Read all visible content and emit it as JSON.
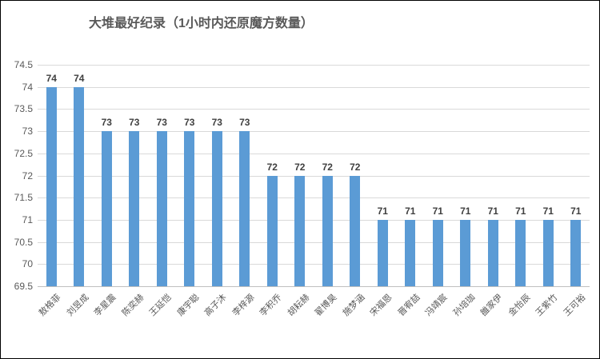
{
  "chart_data": {
    "type": "bar",
    "title": "大堆最好纪录（1小时内还原魔方数量）",
    "categories": [
      "敖格菲",
      "刘昱成",
      "李星震",
      "陈奕赫",
      "王延恺",
      "康宇聪",
      "高子沐",
      "李梓源",
      "李积乔",
      "胡耘赫",
      "翟博昊",
      "施梦涵",
      "宋福恩",
      "晋宥喆",
      "冯靖宸",
      "孙培珈",
      "雒家伊",
      "金怡辰",
      "王紫竹",
      "王可裕"
    ],
    "values": [
      74,
      74,
      73,
      73,
      73,
      73,
      73,
      73,
      72,
      72,
      72,
      72,
      71,
      71,
      71,
      71,
      71,
      71,
      71,
      71
    ],
    "xlabel": "",
    "ylabel": "",
    "ylim": [
      69.5,
      74.5
    ],
    "yticks": [
      69.5,
      70,
      70.5,
      71,
      71.5,
      72,
      72.5,
      73,
      73.5,
      74,
      74.5
    ],
    "ytick_step": 0.5,
    "data_labels": true,
    "grid": true,
    "legend": "none",
    "colors": {
      "bar": "#5B9BD5",
      "gridline": "#D9D9D9",
      "axis_line": "#BFBFBF",
      "title_text": "#595959",
      "tick_text": "#595959",
      "data_label_text": "#404040",
      "chart_border": "#000000",
      "background": "#FFFFFF"
    }
  }
}
